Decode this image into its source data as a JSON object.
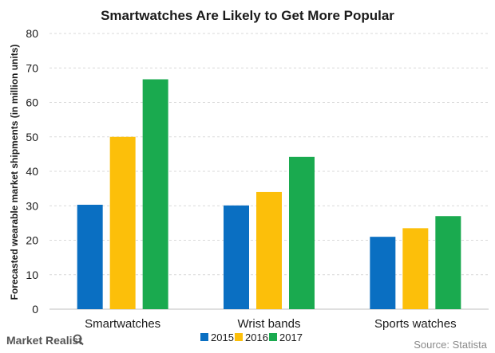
{
  "chart_data": {
    "type": "bar",
    "title": "Smartwatches Are Likely to Get More Popular",
    "ylabel": "Forecasted wearable market shipments (in million units)",
    "xlabel": "",
    "categories": [
      "Smartwatches",
      "Wrist bands",
      "Sports watches"
    ],
    "series": [
      {
        "name": "2015",
        "color": "#0a6fc2",
        "values": [
          30.3,
          30.1,
          21.0
        ]
      },
      {
        "name": "2016",
        "color": "#fcbf0a",
        "values": [
          50.0,
          34.0,
          23.5
        ]
      },
      {
        "name": "2017",
        "color": "#1aaa4f",
        "values": [
          66.7,
          44.2,
          27.0
        ]
      }
    ],
    "ylim": [
      0,
      80
    ],
    "yticks": [
      0,
      10,
      20,
      30,
      40,
      50,
      60,
      70,
      80
    ],
    "grid": true,
    "legend_position": "bottom"
  },
  "footer": {
    "brand": "Market Realist",
    "source": "Source: Statista"
  },
  "icons": {
    "brand_mark": "magnifier-icon"
  }
}
